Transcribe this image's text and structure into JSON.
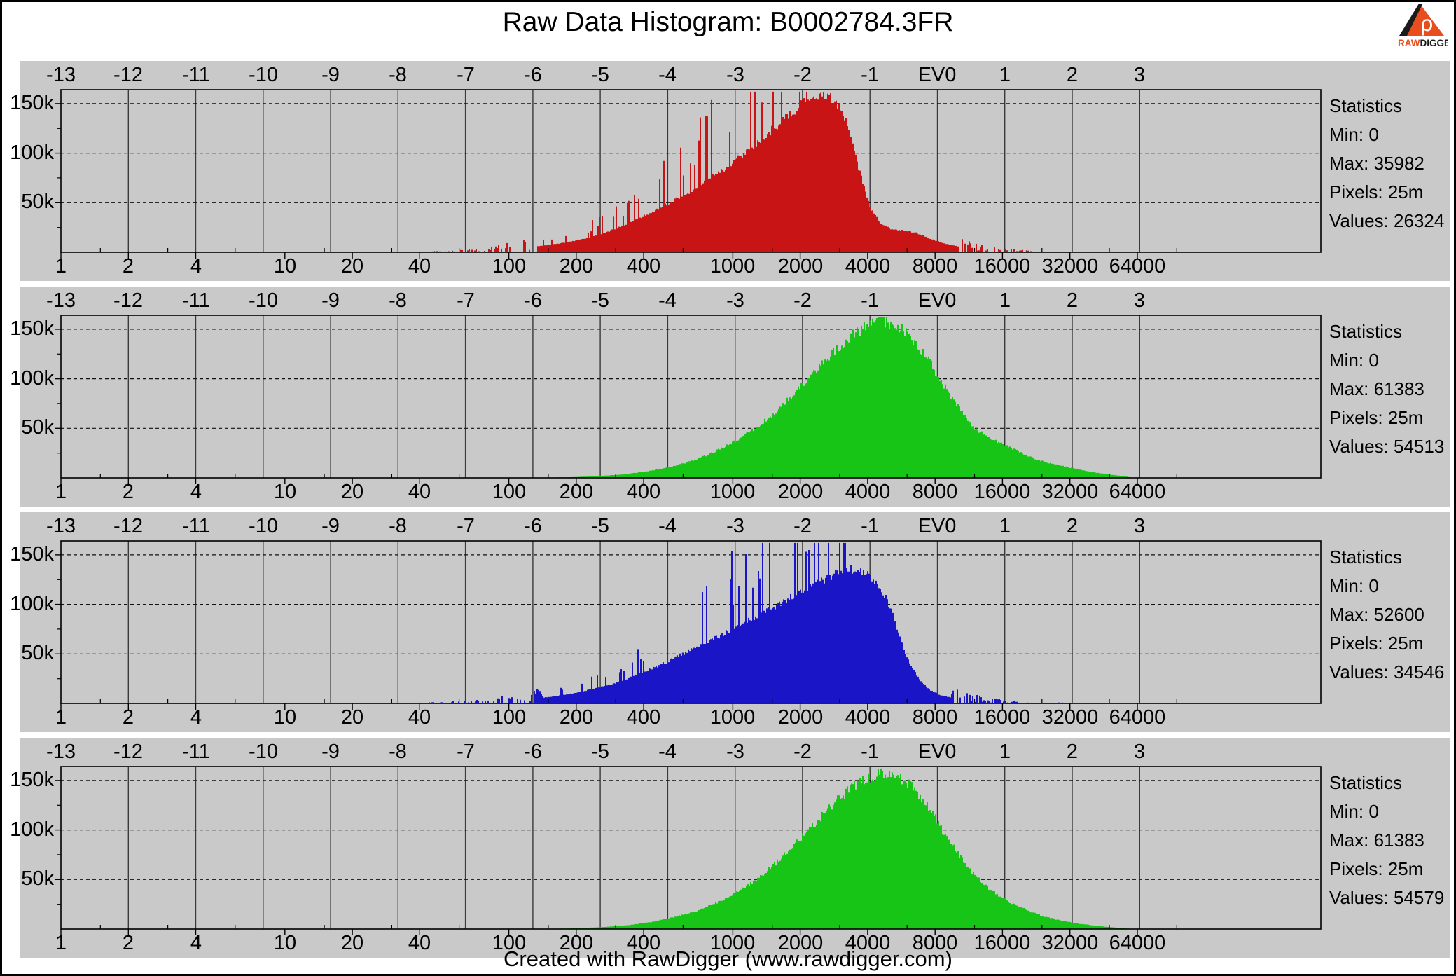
{
  "page": {
    "title": "Raw Data Histogram: B0002784.3FR",
    "footer": "Created with RawDigger (www.rawdigger.com)",
    "background": "#ffffff",
    "panel_background": "#c9c9c9",
    "logo": {
      "symbol": "ρ",
      "brand_raw": "RAW",
      "brand_digger": "DIGGER",
      "orange": "#e84e1d",
      "black": "#1a1a1a"
    }
  },
  "axes": {
    "ev_labels": [
      "-13",
      "-12",
      "-11",
      "-10",
      "-9",
      "-8",
      "-7",
      "-6",
      "-5",
      "-4",
      "-3",
      "-2",
      "-1",
      "EV0",
      "1",
      "2",
      "3"
    ],
    "ev_values": [
      -13,
      -12,
      -11,
      -10,
      -9,
      -8,
      -7,
      -6,
      -5,
      -4,
      -3,
      -2,
      -1,
      0,
      1,
      2,
      3
    ],
    "x_tick_labels": [
      "1",
      "2",
      "4",
      "10",
      "20",
      "40",
      "100",
      "200",
      "400",
      "1000",
      "2000",
      "4000",
      "8000",
      "16000",
      "32000",
      "64000"
    ],
    "x_tick_values": [
      1,
      2,
      4,
      10,
      20,
      40,
      100,
      200,
      400,
      1000,
      2000,
      4000,
      8000,
      16000,
      32000,
      64000
    ],
    "x_scale": "log2",
    "y_tick_labels": [
      "150k",
      "100k",
      "50k"
    ],
    "y_tick_values_k": [
      150,
      100,
      50
    ],
    "ylim_k": [
      0,
      164
    ],
    "grid": "vertical solid per EV stop, horizontal dashed at y ticks"
  },
  "chart_data": [
    {
      "type": "area",
      "channel": "R",
      "color": "#c81414",
      "spiky": true,
      "seed": 11,
      "envelope_value_vs_count_k": [
        [
          40,
          0.2
        ],
        [
          55,
          0.6
        ],
        [
          70,
          1.2
        ],
        [
          90,
          2.5
        ],
        [
          115,
          4.5
        ],
        [
          145,
          7
        ],
        [
          180,
          10
        ],
        [
          220,
          14
        ],
        [
          270,
          20
        ],
        [
          330,
          28
        ],
        [
          400,
          37
        ],
        [
          490,
          47
        ],
        [
          600,
          58
        ],
        [
          740,
          70
        ],
        [
          900,
          84
        ],
        [
          1100,
          99
        ],
        [
          1350,
          116
        ],
        [
          1650,
          133
        ],
        [
          1950,
          147
        ],
        [
          2250,
          158
        ],
        [
          2500,
          160
        ],
        [
          2750,
          156
        ],
        [
          3000,
          147
        ],
        [
          3250,
          128
        ],
        [
          3500,
          100
        ],
        [
          3800,
          68
        ],
        [
          4100,
          44
        ],
        [
          4500,
          30
        ],
        [
          5000,
          24
        ],
        [
          5700,
          22
        ],
        [
          6500,
          20
        ],
        [
          7500,
          14
        ],
        [
          9000,
          8
        ],
        [
          11000,
          4.5
        ],
        [
          14000,
          2.2
        ],
        [
          18000,
          1
        ],
        [
          22000,
          0.5
        ],
        [
          26000,
          0
        ]
      ],
      "stats": {
        "heading": "Statistics",
        "min": "Min: 0",
        "max": "Max: 35982",
        "pixels": "Pixels: 25m",
        "values": "Values: 26324"
      }
    },
    {
      "type": "area",
      "channel": "G",
      "color": "#17c517",
      "spiky": false,
      "seed": 23,
      "envelope_value_vs_count_k": [
        [
          140,
          0.2
        ],
        [
          190,
          0.7
        ],
        [
          250,
          1.8
        ],
        [
          320,
          3.5
        ],
        [
          410,
          6.5
        ],
        [
          520,
          11
        ],
        [
          650,
          17
        ],
        [
          800,
          25
        ],
        [
          1000,
          36
        ],
        [
          1250,
          50
        ],
        [
          1550,
          67
        ],
        [
          1900,
          87
        ],
        [
          2300,
          108
        ],
        [
          2800,
          128
        ],
        [
          3300,
          143
        ],
        [
          3900,
          153
        ],
        [
          4500,
          159
        ],
        [
          5100,
          157
        ],
        [
          5800,
          149
        ],
        [
          6500,
          137
        ],
        [
          7300,
          122
        ],
        [
          8192,
          104
        ],
        [
          9200,
          85
        ],
        [
          10500,
          66
        ],
        [
          12000,
          50
        ],
        [
          14000,
          40
        ],
        [
          16000,
          34
        ],
        [
          19000,
          26
        ],
        [
          23000,
          18
        ],
        [
          28000,
          13
        ],
        [
          34000,
          9
        ],
        [
          41000,
          5.5
        ],
        [
          49000,
          3
        ],
        [
          56000,
          1.5
        ],
        [
          61300,
          0
        ]
      ],
      "stats": {
        "heading": "Statistics",
        "min": "Min: 0",
        "max": "Max: 61383",
        "pixels": "Pixels: 25m",
        "values": "Values: 54513"
      }
    },
    {
      "type": "area",
      "channel": "B",
      "color": "#1a15c6",
      "spiky": true,
      "seed": 37,
      "envelope_value_vs_count_k": [
        [
          38,
          0.2
        ],
        [
          52,
          0.6
        ],
        [
          68,
          1.2
        ],
        [
          88,
          2.2
        ],
        [
          115,
          4
        ],
        [
          150,
          6.5
        ],
        [
          190,
          10
        ],
        [
          240,
          15
        ],
        [
          300,
          21
        ],
        [
          370,
          29
        ],
        [
          460,
          38
        ],
        [
          570,
          48
        ],
        [
          700,
          58
        ],
        [
          860,
          68
        ],
        [
          1050,
          79
        ],
        [
          1300,
          90
        ],
        [
          1600,
          101
        ],
        [
          1950,
          112
        ],
        [
          2350,
          122
        ],
        [
          2800,
          131
        ],
        [
          3250,
          137
        ],
        [
          3700,
          135
        ],
        [
          4150,
          128
        ],
        [
          4600,
          115
        ],
        [
          5000,
          98
        ],
        [
          5400,
          76
        ],
        [
          5800,
          54
        ],
        [
          6300,
          35
        ],
        [
          6900,
          22
        ],
        [
          7600,
          13
        ],
        [
          8500,
          8
        ],
        [
          9800,
          5
        ],
        [
          11500,
          3.2
        ],
        [
          14000,
          2
        ],
        [
          18000,
          1.2
        ],
        [
          23000,
          0.6
        ],
        [
          30000,
          0.3
        ],
        [
          38000,
          0
        ]
      ],
      "stats": {
        "heading": "Statistics",
        "min": "Min: 0",
        "max": "Max: 52600",
        "pixels": "Pixels: 25m",
        "values": "Values: 34546"
      }
    },
    {
      "type": "area",
      "channel": "G2",
      "color": "#17c517",
      "spiky": false,
      "seed": 51,
      "envelope_value_vs_count_k": [
        [
          150,
          0.2
        ],
        [
          200,
          0.8
        ],
        [
          260,
          2
        ],
        [
          340,
          4
        ],
        [
          430,
          7
        ],
        [
          540,
          12
        ],
        [
          680,
          18
        ],
        [
          850,
          27
        ],
        [
          1050,
          38
        ],
        [
          1300,
          52
        ],
        [
          1600,
          70
        ],
        [
          1950,
          90
        ],
        [
          2400,
          111
        ],
        [
          2900,
          130
        ],
        [
          3400,
          144
        ],
        [
          4000,
          154
        ],
        [
          4700,
          159
        ],
        [
          5400,
          156
        ],
        [
          6100,
          147
        ],
        [
          6900,
          134
        ],
        [
          7700,
          119
        ],
        [
          8600,
          100
        ],
        [
          9800,
          80
        ],
        [
          11200,
          62
        ],
        [
          13000,
          46
        ],
        [
          15000,
          35
        ],
        [
          17500,
          26
        ],
        [
          21000,
          18
        ],
        [
          25000,
          12
        ],
        [
          30000,
          8
        ],
        [
          36000,
          5
        ],
        [
          43000,
          3
        ],
        [
          50000,
          1.6
        ],
        [
          56000,
          0.7
        ],
        [
          61300,
          0
        ]
      ],
      "stats": {
        "heading": "Statistics",
        "min": "Min: 0",
        "max": "Max: 61383",
        "pixels": "Pixels: 25m",
        "values": "Values: 54579"
      }
    }
  ]
}
